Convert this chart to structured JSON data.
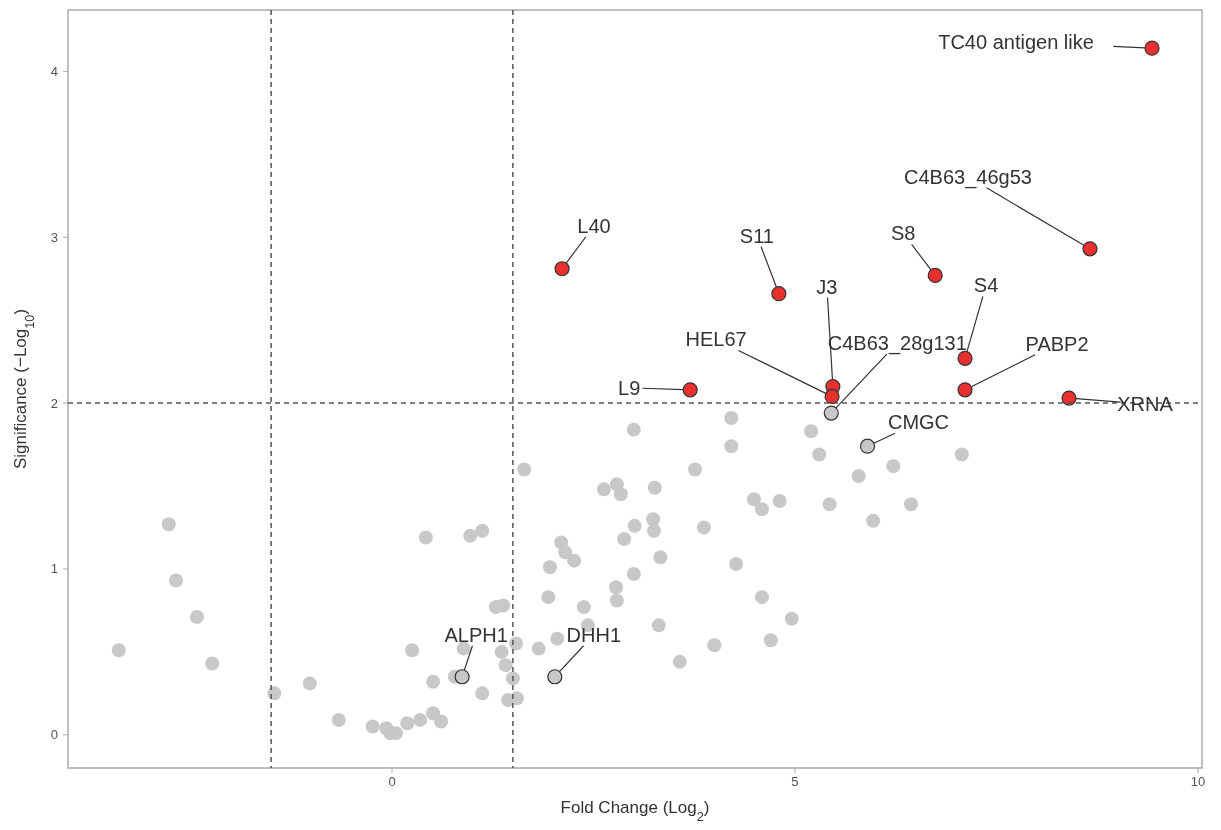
{
  "chart_data": {
    "type": "scatter",
    "xlabel": "Fold Change (Log$_{2}$)",
    "ylabel": "Significance (−Log$_{10}$)",
    "xlim": [
      -4.02,
      10.05
    ],
    "ylim": [
      -0.2,
      4.37
    ],
    "xticks": [
      0,
      5,
      10
    ],
    "yticks": [
      0,
      1,
      2,
      3,
      4
    ],
    "grid": false,
    "marker": "circle",
    "series": [
      {
        "color": "#c8c8c8",
        "x": [
          -2.77,
          -2.68,
          -2.42,
          -3.39,
          -2.23,
          -1.46,
          -1.02,
          -0.66,
          -0.24,
          -0.07,
          -0.02,
          0.05,
          0.19,
          0.35,
          0.51,
          0.61,
          0.25,
          0.42,
          0.97,
          1.12,
          0.51,
          0.78,
          0.89,
          1.12,
          1.29,
          1.38,
          1.36,
          1.41,
          1.5,
          1.54,
          1.44,
          1.55,
          1.82,
          2.05,
          1.94,
          1.96,
          2.1,
          4.21,
          3.0,
          5.2,
          4.21,
          5.3,
          7.07,
          1.64,
          3.76,
          6.22,
          5.79,
          2.79,
          2.63,
          2.84,
          3.26,
          4.49,
          4.59,
          4.81,
          5.43,
          6.44,
          5.97,
          3.24,
          3.25,
          3.01,
          2.88,
          3.87,
          2.15,
          2.26,
          3.33,
          4.27,
          3.0,
          2.78,
          2.79,
          4.59,
          2.38,
          4.96,
          3.31,
          2.43,
          4.7,
          4.0,
          3.57,
          5.45,
          5.9,
          0.87,
          2.02
        ],
        "values": [
          1.27,
          0.93,
          0.71,
          0.51,
          0.43,
          0.25,
          0.31,
          0.09,
          0.05,
          0.04,
          0.01,
          0.01,
          0.07,
          0.09,
          0.13,
          0.08,
          0.51,
          1.19,
          1.2,
          1.23,
          0.32,
          0.35,
          0.52,
          0.25,
          0.77,
          0.78,
          0.5,
          0.42,
          0.34,
          0.55,
          0.21,
          0.22,
          0.52,
          0.58,
          0.83,
          1.01,
          1.16,
          1.91,
          1.84,
          1.83,
          1.74,
          1.69,
          1.69,
          1.6,
          1.6,
          1.62,
          1.56,
          1.51,
          1.48,
          1.45,
          1.49,
          1.42,
          1.36,
          1.41,
          1.39,
          1.39,
          1.29,
          1.3,
          1.23,
          1.26,
          1.18,
          1.25,
          1.1,
          1.05,
          1.07,
          1.03,
          0.97,
          0.89,
          0.81,
          0.83,
          0.77,
          0.7,
          0.66,
          0.66,
          0.57,
          0.54,
          0.44,
          1.94,
          1.74,
          0.35,
          0.35
        ]
      },
      {
        "color": "#e8302e",
        "x": [
          9.43,
          8.66,
          2.11,
          4.8,
          6.74,
          5.47,
          5.46,
          7.11,
          7.11,
          3.7,
          8.4
        ],
        "values": [
          4.14,
          2.93,
          2.81,
          2.66,
          2.77,
          2.1,
          2.04,
          2.27,
          2.08,
          2.08,
          2.03
        ]
      }
    ],
    "ref_lines": [
      {
        "axis": "x",
        "value": -1.5,
        "color": "#555555",
        "line_style": "dashed"
      },
      {
        "axis": "x",
        "value": 1.5,
        "color": "#555555",
        "line_style": "dashed"
      },
      {
        "axis": "y",
        "value": 2,
        "color": "#555555",
        "line_style": "dashed"
      }
    ],
    "annotations": [
      {
        "text": "TC40 antigen like",
        "x": 9.43,
        "y": 4.14
      },
      {
        "text": "C4B63_46g53",
        "x": 8.66,
        "y": 2.93
      },
      {
        "text": "L40",
        "x": 2.11,
        "y": 2.81
      },
      {
        "text": "S11",
        "x": 4.8,
        "y": 2.66
      },
      {
        "text": "S8",
        "x": 6.74,
        "y": 2.77
      },
      {
        "text": "J3",
        "x": 5.47,
        "y": 2.1
      },
      {
        "text": "HEL67",
        "x": 5.46,
        "y": 2.04
      },
      {
        "text": "C4B63_28g131",
        "x": 5.45,
        "y": 1.94
      },
      {
        "text": "S4",
        "x": 7.11,
        "y": 2.27
      },
      {
        "text": "PABP2",
        "x": 7.11,
        "y": 2.08
      },
      {
        "text": "L9",
        "x": 3.7,
        "y": 2.08
      },
      {
        "text": "XRNA",
        "x": 8.4,
        "y": 2.03
      },
      {
        "text": "CMGC",
        "x": 5.9,
        "y": 1.74
      },
      {
        "text": "ALPH1",
        "x": 0.87,
        "y": 0.35
      },
      {
        "text": "DHH1",
        "x": 2.02,
        "y": 0.35
      }
    ]
  }
}
